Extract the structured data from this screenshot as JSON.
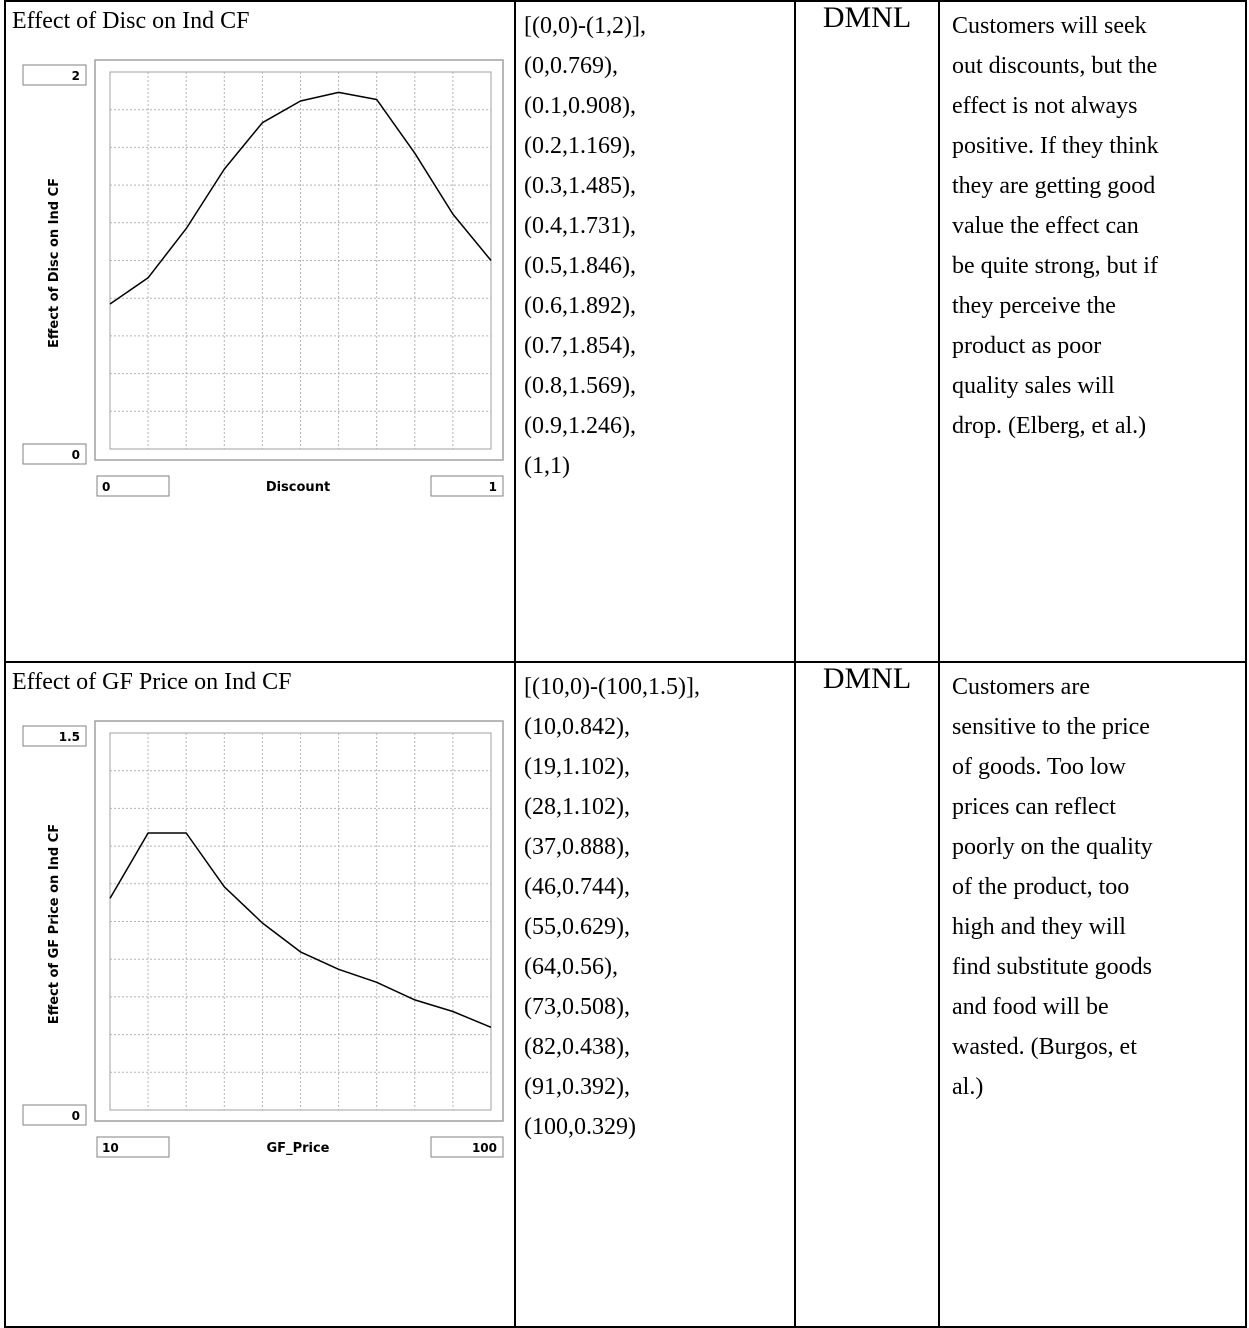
{
  "rows": [
    {
      "name": "Effect of Disc on Ind CF",
      "units": "DMNL",
      "lookup_lines": [
        "[(0,0)-(1,2)],",
        "(0,0.769),",
        "(0.1,0.908),",
        "(0.2,1.169),",
        "(0.3,1.485),",
        "(0.4,1.731),",
        "(0.5,1.846),",
        "(0.6,1.892),",
        "(0.7,1.854),",
        "(0.8,1.569),",
        "(0.9,1.246),",
        "(1,1)"
      ],
      "description_lines": [
        "Customers will seek",
        "out discounts, but the",
        "effect is not always",
        "positive. If they think",
        "they are getting good",
        "value the effect can",
        "be quite strong, but if",
        "they perceive the",
        "product as poor",
        "quality sales will",
        "drop. (Elberg, et al.)"
      ],
      "chart": {
        "ymax_label": "2",
        "ymin_label": "0",
        "xmin_label": "0",
        "xmax_label": "1",
        "xlabel": "Discount",
        "ylabel": "Effect of Disc on Ind CF"
      }
    },
    {
      "name": "Effect of GF Price on Ind CF",
      "units": "DMNL",
      "lookup_lines": [
        "[(10,0)-(100,1.5)],",
        "(10,0.842),",
        "(19,1.102),",
        "(28,1.102),",
        "(37,0.888),",
        "(46,0.744),",
        "(55,0.629),",
        "(64,0.56),",
        "(73,0.508),",
        "(82,0.438),",
        "(91,0.392),",
        "(100,0.329)"
      ],
      "description_lines": [
        "Customers are",
        "sensitive to the price",
        "of goods. Too low",
        "prices can reflect",
        "poorly on the quality",
        "of the product, too",
        "high and they will",
        "find substitute goods",
        "and food will be",
        "wasted. (Burgos, et",
        "al.)"
      ],
      "chart": {
        "ymax_label": "1.5",
        "ymin_label": "0",
        "xmin_label": "10",
        "xmax_label": "100",
        "xlabel": "GF_Price",
        "ylabel": "Effect of GF Price on Ind CF"
      }
    }
  ],
  "chart_data": [
    {
      "type": "line",
      "x": [
        0,
        0.1,
        0.2,
        0.3,
        0.4,
        0.5,
        0.6,
        0.7,
        0.8,
        0.9,
        1
      ],
      "series": [
        {
          "values": [
            0.769,
            0.908,
            1.169,
            1.485,
            1.731,
            1.846,
            1.892,
            1.854,
            1.569,
            1.246,
            1
          ]
        }
      ],
      "xlim": [
        0,
        1
      ],
      "ylim": [
        0,
        2
      ],
      "xlabel": "Discount",
      "ylabel": "Effect of Disc on Ind CF",
      "grid": true,
      "color": "#000000"
    },
    {
      "type": "line",
      "x": [
        10,
        19,
        28,
        37,
        46,
        55,
        64,
        73,
        82,
        91,
        100
      ],
      "series": [
        {
          "values": [
            0.842,
            1.102,
            1.102,
            0.888,
            0.744,
            0.629,
            0.56,
            0.508,
            0.438,
            0.392,
            0.329
          ]
        }
      ],
      "xlim": [
        10,
        100
      ],
      "ylim": [
        0,
        1.5
      ],
      "xlabel": "GF_Price",
      "ylabel": "Effect of GF Price on Ind CF",
      "grid": true,
      "color": "#000000"
    }
  ]
}
